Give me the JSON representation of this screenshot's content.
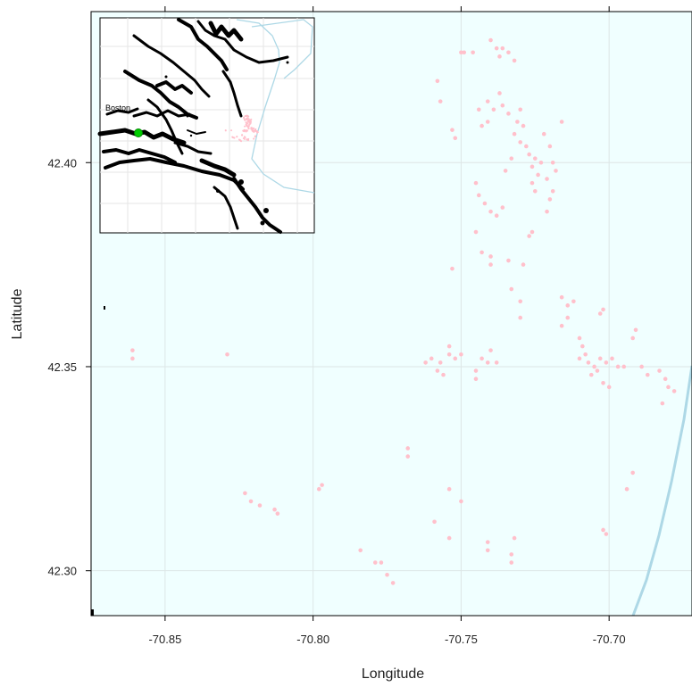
{
  "map": {
    "xlabel": "Longitude",
    "ylabel": "Latitude",
    "x_range": [
      -70.875,
      -70.672
    ],
    "y_range": [
      42.289,
      42.437
    ],
    "x_ticks": [
      "-70.85",
      "-70.80",
      "-70.75",
      "-70.70"
    ],
    "x_tick_values": [
      -70.85,
      -70.8,
      -70.75,
      -70.7
    ],
    "y_ticks": [
      "42.30",
      "42.35",
      "42.40"
    ],
    "y_tick_values": [
      42.3,
      42.35,
      42.4
    ],
    "grid": true,
    "colors": {
      "water": "#f0ffff",
      "grid": "#dde6e6",
      "points": "#ffc0cb",
      "coast": "#add8e6",
      "land": "#000000",
      "city_marker": "#00cc00"
    }
  },
  "inset": {
    "city_label": "Boston"
  },
  "chart_data": {
    "type": "scatter",
    "xlabel": "Longitude",
    "ylabel": "Latitude",
    "xlim": [
      -70.875,
      -70.672
    ],
    "ylim": [
      42.289,
      42.437
    ],
    "grid": true,
    "points": [
      [
        -70.861,
        42.354
      ],
      [
        -70.861,
        42.352
      ],
      [
        -70.829,
        42.353
      ],
      [
        -70.823,
        42.319
      ],
      [
        -70.821,
        42.317
      ],
      [
        -70.818,
        42.316
      ],
      [
        -70.813,
        42.315
      ],
      [
        -70.812,
        42.314
      ],
      [
        -70.797,
        42.321
      ],
      [
        -70.798,
        42.32
      ],
      [
        -70.784,
        42.305
      ],
      [
        -70.779,
        42.302
      ],
      [
        -70.777,
        42.302
      ],
      [
        -70.775,
        42.299
      ],
      [
        -70.773,
        42.297
      ],
      [
        -70.768,
        42.33
      ],
      [
        -70.768,
        42.328
      ],
      [
        -70.762,
        42.351
      ],
      [
        -70.76,
        42.352
      ],
      [
        -70.758,
        42.349
      ],
      [
        -70.756,
        42.348
      ],
      [
        -70.757,
        42.351
      ],
      [
        -70.754,
        42.355
      ],
      [
        -70.754,
        42.353
      ],
      [
        -70.752,
        42.352
      ],
      [
        -70.75,
        42.353
      ],
      [
        -70.753,
        42.374
      ],
      [
        -70.754,
        42.32
      ],
      [
        -70.75,
        42.317
      ],
      [
        -70.759,
        42.312
      ],
      [
        -70.754,
        42.308
      ],
      [
        -70.741,
        42.307
      ],
      [
        -70.741,
        42.305
      ],
      [
        -70.732,
        42.308
      ],
      [
        -70.733,
        42.304
      ],
      [
        -70.733,
        42.302
      ],
      [
        -70.745,
        42.349
      ],
      [
        -70.745,
        42.347
      ],
      [
        -70.743,
        42.352
      ],
      [
        -70.741,
        42.351
      ],
      [
        -70.738,
        42.351
      ],
      [
        -70.74,
        42.354
      ],
      [
        -70.745,
        42.383
      ],
      [
        -70.743,
        42.378
      ],
      [
        -70.74,
        42.377
      ],
      [
        -70.74,
        42.375
      ],
      [
        -70.734,
        42.376
      ],
      [
        -70.733,
        42.369
      ],
      [
        -70.73,
        42.366
      ],
      [
        -70.73,
        42.362
      ],
      [
        -70.729,
        42.375
      ],
      [
        -70.726,
        42.383
      ],
      [
        -70.727,
        42.382
      ],
      [
        -70.75,
        42.427
      ],
      [
        -70.749,
        42.427
      ],
      [
        -70.746,
        42.427
      ],
      [
        -70.74,
        42.43
      ],
      [
        -70.738,
        42.428
      ],
      [
        -70.736,
        42.428
      ],
      [
        -70.737,
        42.426
      ],
      [
        -70.734,
        42.427
      ],
      [
        -70.732,
        42.425
      ],
      [
        -70.741,
        42.415
      ],
      [
        -70.739,
        42.413
      ],
      [
        -70.736,
        42.414
      ],
      [
        -70.734,
        42.412
      ],
      [
        -70.737,
        42.417
      ],
      [
        -70.744,
        42.413
      ],
      [
        -70.73,
        42.413
      ],
      [
        -70.743,
        42.409
      ],
      [
        -70.741,
        42.41
      ],
      [
        -70.758,
        42.42
      ],
      [
        -70.757,
        42.415
      ],
      [
        -70.753,
        42.408
      ],
      [
        -70.752,
        42.406
      ],
      [
        -70.745,
        42.395
      ],
      [
        -70.744,
        42.392
      ],
      [
        -70.742,
        42.39
      ],
      [
        -70.74,
        42.388
      ],
      [
        -70.738,
        42.387
      ],
      [
        -70.736,
        42.389
      ],
      [
        -70.732,
        42.407
      ],
      [
        -70.73,
        42.405
      ],
      [
        -70.728,
        42.404
      ],
      [
        -70.727,
        42.402
      ],
      [
        -70.725,
        42.401
      ],
      [
        -70.726,
        42.399
      ],
      [
        -70.724,
        42.397
      ],
      [
        -70.723,
        42.4
      ],
      [
        -70.721,
        42.396
      ],
      [
        -70.719,
        42.4
      ],
      [
        -70.718,
        42.398
      ],
      [
        -70.72,
        42.404
      ],
      [
        -70.722,
        42.407
      ],
      [
        -70.729,
        42.409
      ],
      [
        -70.731,
        42.41
      ],
      [
        -70.733,
        42.401
      ],
      [
        -70.735,
        42.398
      ],
      [
        -70.72,
        42.391
      ],
      [
        -70.719,
        42.393
      ],
      [
        -70.721,
        42.388
      ],
      [
        -70.716,
        42.41
      ],
      [
        -70.725,
        42.393
      ],
      [
        -70.726,
        42.395
      ],
      [
        -70.716,
        42.367
      ],
      [
        -70.714,
        42.365
      ],
      [
        -70.712,
        42.366
      ],
      [
        -70.714,
        42.362
      ],
      [
        -70.716,
        42.36
      ],
      [
        -70.71,
        42.357
      ],
      [
        -70.709,
        42.355
      ],
      [
        -70.708,
        42.353
      ],
      [
        -70.707,
        42.351
      ],
      [
        -70.705,
        42.35
      ],
      [
        -70.703,
        42.352
      ],
      [
        -70.701,
        42.351
      ],
      [
        -70.699,
        42.352
      ],
      [
        -70.697,
        42.35
      ],
      [
        -70.695,
        42.35
      ],
      [
        -70.706,
        42.348
      ],
      [
        -70.704,
        42.349
      ],
      [
        -70.702,
        42.346
      ],
      [
        -70.7,
        42.345
      ],
      [
        -70.703,
        42.363
      ],
      [
        -70.702,
        42.364
      ],
      [
        -70.71,
        42.352
      ],
      [
        -70.692,
        42.357
      ],
      [
        -70.691,
        42.359
      ],
      [
        -70.689,
        42.35
      ],
      [
        -70.687,
        42.348
      ],
      [
        -70.683,
        42.349
      ],
      [
        -70.681,
        42.347
      ],
      [
        -70.68,
        42.345
      ],
      [
        -70.682,
        42.341
      ],
      [
        -70.678,
        42.344
      ],
      [
        -70.694,
        42.32
      ],
      [
        -70.692,
        42.324
      ],
      [
        -70.702,
        42.31
      ],
      [
        -70.701,
        42.309
      ]
    ]
  }
}
